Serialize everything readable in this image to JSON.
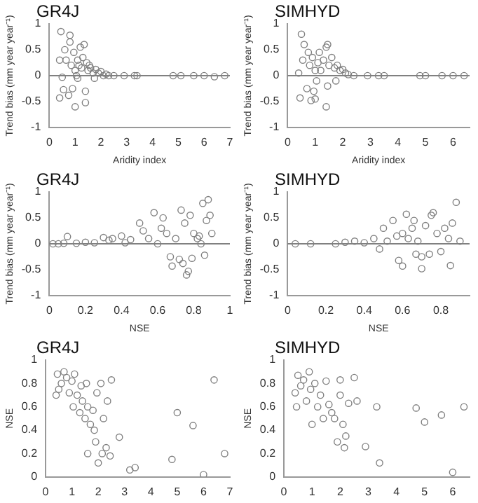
{
  "chart_data": [
    {
      "type": "scatter",
      "title": "GR4J",
      "xlabel": "Aridity index",
      "ylabel": "Trend bias (mm year year⁻¹)",
      "xlim": [
        0,
        7
      ],
      "xticks": [
        0,
        1,
        2,
        3,
        4,
        5,
        6,
        7
      ],
      "ylim": [
        -1,
        1
      ],
      "yticks": [
        -1,
        -0.5,
        0,
        0.5,
        1
      ],
      "marker": "circle",
      "legend": false,
      "ref_lines": [
        {
          "axis": "y",
          "value": 0,
          "color": "#808080"
        }
      ],
      "series": [
        {
          "color": "#808080",
          "x": [
            0.4,
            0.45,
            0.4,
            0.5,
            0.55,
            0.6,
            0.65,
            0.75,
            0.8,
            0.8,
            0.85,
            0.9,
            0.95,
            1.0,
            1.0,
            1.05,
            1.1,
            1.1,
            1.15,
            1.2,
            1.25,
            1.3,
            1.35,
            1.4,
            1.4,
            1.45,
            1.5,
            1.55,
            1.6,
            1.7,
            1.75,
            1.8,
            1.9,
            2.0,
            2.1,
            2.2,
            2.3,
            2.5,
            2.9,
            3.3,
            3.4,
            4.8,
            5.1,
            5.6,
            6.0,
            6.4,
            6.8
          ],
          "values": [
            0.3,
            0.85,
            -0.43,
            -0.03,
            -0.27,
            0.5,
            0.3,
            -0.38,
            0.78,
            0.65,
            0.2,
            -0.25,
            0.45,
            -0.6,
            0.1,
            0.0,
            0.3,
            -0.05,
            0.2,
            0.55,
            0.15,
            0.35,
            0.6,
            -0.3,
            -0.52,
            0.25,
            0.1,
            0.2,
            0.15,
            0.05,
            -0.05,
            0.12,
            0.05,
            0.08,
            0.0,
            0.03,
            0.0,
            0.0,
            0.0,
            0.0,
            0.0,
            0.0,
            0.0,
            0.0,
            0.0,
            -0.02,
            0.0
          ]
        }
      ]
    },
    {
      "type": "scatter",
      "title": "SIMHYD",
      "xlabel": "Aridity index",
      "ylabel": "Trend bias (mm year year⁻¹)",
      "xlim": [
        0,
        6.6
      ],
      "xticks": [
        0,
        1,
        2,
        3,
        4,
        5,
        6
      ],
      "ylim": [
        -1,
        1
      ],
      "yticks": [
        -1,
        -0.5,
        0,
        0.5,
        1
      ],
      "marker": "circle",
      "legend": false,
      "ref_lines": [
        {
          "axis": "y",
          "value": 0,
          "color": "#808080"
        }
      ],
      "series": [
        {
          "color": "#808080",
          "x": [
            0.4,
            0.45,
            0.5,
            0.55,
            0.6,
            0.7,
            0.75,
            0.8,
            0.85,
            0.9,
            0.95,
            1.0,
            1.0,
            1.05,
            1.1,
            1.15,
            1.2,
            1.3,
            1.4,
            1.45,
            1.45,
            1.4,
            1.5,
            1.6,
            1.7,
            1.75,
            1.8,
            1.9,
            2.0,
            2.1,
            2.2,
            2.4,
            2.9,
            3.3,
            3.5,
            4.8,
            5.0,
            5.6,
            6.0,
            6.4
          ],
          "values": [
            0.05,
            -0.43,
            0.8,
            0.3,
            0.6,
            -0.25,
            0.45,
            0.2,
            -0.48,
            0.35,
            -0.3,
            -0.45,
            0.1,
            -0.1,
            0.25,
            0.45,
            0.1,
            0.3,
            0.55,
            0.6,
            -0.2,
            -0.6,
            0.2,
            0.35,
            0.15,
            -0.1,
            0.2,
            0.1,
            0.12,
            0.05,
            0.02,
            0.0,
            0.0,
            0.0,
            0.0,
            0.0,
            0.0,
            0.0,
            0.0,
            0.0
          ]
        }
      ]
    },
    {
      "type": "scatter",
      "title": "GR4J",
      "xlabel": "NSE",
      "ylabel": "Trend bias (mm year year⁻¹)",
      "xlim": [
        0,
        1
      ],
      "xticks": [
        0,
        0.2,
        0.4,
        0.6,
        0.8,
        1
      ],
      "ylim": [
        -1,
        1
      ],
      "yticks": [
        -1,
        -0.5,
        0,
        0.5,
        1
      ],
      "marker": "circle",
      "legend": false,
      "ref_lines": [
        {
          "axis": "y",
          "value": 0,
          "color": "#808080"
        }
      ],
      "series": [
        {
          "color": "#808080",
          "x": [
            0.02,
            0.05,
            0.08,
            0.1,
            0.15,
            0.2,
            0.25,
            0.3,
            0.33,
            0.35,
            0.4,
            0.42,
            0.45,
            0.5,
            0.52,
            0.55,
            0.58,
            0.6,
            0.62,
            0.63,
            0.65,
            0.67,
            0.68,
            0.7,
            0.72,
            0.73,
            0.74,
            0.75,
            0.76,
            0.77,
            0.78,
            0.79,
            0.8,
            0.82,
            0.83,
            0.84,
            0.85,
            0.86,
            0.87,
            0.88,
            0.89,
            0.9
          ],
          "values": [
            0,
            0,
            0.01,
            0.14,
            0.01,
            0.03,
            0.02,
            0.12,
            0.07,
            0.1,
            0.15,
            0.02,
            0.08,
            0.4,
            0.25,
            0.1,
            0.6,
            0.0,
            0.3,
            0.5,
            0.2,
            -0.25,
            -0.43,
            0.1,
            -0.3,
            0.65,
            -0.38,
            0.4,
            -0.6,
            -0.53,
            0.55,
            -0.28,
            0.2,
            0.1,
            0.15,
            0.0,
            0.78,
            -0.22,
            0.45,
            0.85,
            0.55,
            0.2
          ]
        }
      ]
    },
    {
      "type": "scatter",
      "title": "SIMHYD",
      "xlabel": "NSE",
      "ylabel": "Trend bias (mm year year⁻¹)",
      "xlim": [
        0,
        0.95
      ],
      "xticks": [
        0,
        0.2,
        0.4,
        0.6,
        0.8
      ],
      "ylim": [
        -1,
        1
      ],
      "yticks": [
        -1,
        -0.5,
        0,
        0.5,
        1
      ],
      "marker": "circle",
      "legend": false,
      "ref_lines": [
        {
          "axis": "y",
          "value": 0,
          "color": "#808080"
        }
      ],
      "series": [
        {
          "color": "#808080",
          "x": [
            0.04,
            0.12,
            0.25,
            0.3,
            0.35,
            0.4,
            0.45,
            0.48,
            0.5,
            0.52,
            0.55,
            0.57,
            0.58,
            0.6,
            0.6,
            0.62,
            0.63,
            0.65,
            0.66,
            0.67,
            0.68,
            0.7,
            0.7,
            0.72,
            0.74,
            0.75,
            0.76,
            0.78,
            0.8,
            0.82,
            0.84,
            0.85,
            0.86,
            0.88,
            0.9
          ],
          "values": [
            0,
            0,
            0,
            0.03,
            0.05,
            0.02,
            0.1,
            -0.1,
            0.3,
            0.05,
            0.45,
            0.15,
            -0.32,
            -0.43,
            0.2,
            0.57,
            0.1,
            0.3,
            0.45,
            -0.2,
            0.05,
            -0.25,
            -0.48,
            0.35,
            -0.2,
            0.55,
            0.6,
            0.2,
            -0.15,
            0.3,
            0.1,
            -0.42,
            0.4,
            0.8,
            0.05
          ]
        }
      ]
    },
    {
      "type": "scatter",
      "title": "GR4J",
      "ylabel": "NSE",
      "xlim": [
        0,
        7
      ],
      "xticks": [
        0,
        1,
        2,
        3,
        4,
        5,
        6,
        7
      ],
      "ylim": [
        0,
        1
      ],
      "yticks": [
        0,
        0.2,
        0.4,
        0.6,
        0.8,
        1
      ],
      "marker": "circle",
      "legend": false,
      "series": [
        {
          "color": "#808080",
          "x": [
            0.4,
            0.45,
            0.5,
            0.6,
            0.7,
            0.8,
            0.9,
            1.0,
            1.05,
            1.1,
            1.2,
            1.3,
            1.35,
            1.4,
            1.5,
            1.55,
            1.6,
            1.7,
            1.8,
            1.85,
            1.9,
            1.95,
            2.0,
            2.1,
            2.15,
            2.2,
            2.3,
            2.35,
            2.45,
            2.5,
            2.8,
            3.2,
            3.4,
            4.8,
            5.0,
            5.6,
            6.0,
            6.4,
            6.8,
            1.6
          ],
          "values": [
            0.7,
            0.88,
            0.75,
            0.8,
            0.9,
            0.85,
            0.72,
            0.82,
            0.6,
            0.88,
            0.7,
            0.55,
            0.78,
            0.65,
            0.5,
            0.8,
            0.6,
            0.45,
            0.57,
            0.4,
            0.3,
            0.72,
            0.12,
            0.8,
            0.2,
            0.5,
            0.25,
            0.65,
            0.18,
            0.83,
            0.34,
            0.06,
            0.08,
            0.15,
            0.55,
            0.44,
            0.02,
            0.83,
            0.2,
            0.2
          ]
        }
      ]
    },
    {
      "type": "scatter",
      "title": "SIMHYD",
      "ylabel": "NSE",
      "xlim": [
        0,
        6.6
      ],
      "xticks": [
        0,
        1,
        2,
        3,
        4,
        5,
        6
      ],
      "ylim": [
        0,
        1
      ],
      "yticks": [
        0,
        0.2,
        0.4,
        0.6,
        0.8,
        1
      ],
      "marker": "circle",
      "legend": false,
      "series": [
        {
          "color": "#808080",
          "x": [
            0.4,
            0.45,
            0.5,
            0.6,
            0.7,
            0.8,
            0.9,
            0.95,
            1.0,
            1.1,
            1.2,
            1.3,
            1.4,
            1.5,
            1.6,
            1.7,
            1.8,
            1.9,
            2.0,
            2.0,
            2.1,
            2.15,
            2.2,
            2.3,
            2.5,
            2.6,
            2.9,
            3.3,
            3.4,
            4.7,
            5.0,
            5.6,
            6.0,
            6.4
          ],
          "values": [
            0.72,
            0.6,
            0.87,
            0.78,
            0.83,
            0.65,
            0.9,
            0.75,
            0.45,
            0.8,
            0.6,
            0.7,
            0.5,
            0.82,
            0.62,
            0.55,
            0.5,
            0.3,
            0.83,
            0.7,
            0.45,
            0.25,
            0.35,
            0.63,
            0.85,
            0.65,
            0.26,
            0.6,
            0.12,
            0.59,
            0.47,
            0.53,
            0.04,
            0.6
          ]
        }
      ]
    }
  ]
}
